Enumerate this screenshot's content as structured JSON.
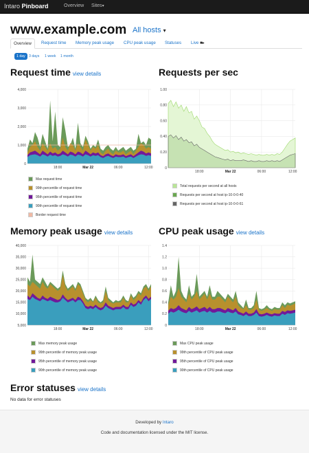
{
  "navbar": {
    "brand_light": "Intaro",
    "brand_bold": "Pinboard",
    "items": [
      {
        "label": "Overview"
      },
      {
        "label": "Sites"
      }
    ]
  },
  "page": {
    "title": "www.example.com",
    "hosts_label": "All hosts"
  },
  "tabs": [
    {
      "label": "Overview",
      "active": true
    },
    {
      "label": "Request time"
    },
    {
      "label": "Memory peak usage"
    },
    {
      "label": "CPU peak usage"
    },
    {
      "label": "Statuses"
    },
    {
      "label": "Live"
    }
  ],
  "periods": [
    {
      "label": "1 day",
      "active": true
    },
    {
      "label": "3 days"
    },
    {
      "label": "1 week"
    },
    {
      "label": "1 month"
    }
  ],
  "sections": {
    "request_time": {
      "title": "Request time",
      "link": "view details"
    },
    "requests_per_sec": {
      "title": "Requests per sec"
    },
    "memory": {
      "title": "Memory peak usage",
      "link": "view details"
    },
    "cpu": {
      "title": "CPU peak usage",
      "link": "view details"
    },
    "errors": {
      "title": "Error statuses",
      "link": "view details",
      "empty": "No data for error statuses"
    }
  },
  "colors": {
    "max": "#6b9a5a",
    "p99": "#b8902d",
    "p95": "#71199a",
    "p90": "#3a9ebd",
    "border": "#f0b9a4",
    "rps_total": "#b9e796",
    "rps_host_a": "#6aa84f",
    "rps_host_b": "#666666",
    "accent": "#1a73c9"
  },
  "icons": {
    "hosts_caret": "caret-down-icon",
    "live": "video-camera-icon"
  },
  "chart_data": [
    {
      "id": "request_time",
      "type": "area",
      "ylim": [
        0,
        4000
      ],
      "yticks": [
        "4,000",
        "3,000",
        "2,000",
        "1,000",
        "0"
      ],
      "xticks": [
        {
          "label": "18:00",
          "x": 18
        },
        {
          "label": "Mar 22",
          "x": 24,
          "bold": true
        },
        {
          "label": "06:00",
          "x": 30
        },
        {
          "label": "12:00",
          "x": 36
        }
      ],
      "x_range": [
        12,
        36.5
      ],
      "border_value": 1000,
      "series": [
        {
          "name": "Max request time",
          "key": "max",
          "values": [
            800,
            1300,
            1100,
            1700,
            1400,
            900,
            1600,
            1200,
            800,
            3400,
            1200,
            2800,
            1000,
            900,
            2500,
            1800,
            900,
            1000,
            1400,
            800,
            2200,
            1100,
            900,
            1500,
            1200,
            800,
            1000,
            900,
            1300,
            800,
            700,
            900,
            1000,
            800,
            700,
            900,
            700,
            800,
            900,
            700,
            800,
            900,
            700,
            800,
            1600,
            1100,
            1200,
            1000,
            1400,
            1300
          ]
        },
        {
          "name": "99th percentile of request time",
          "key": "p99",
          "values": [
            600,
            900,
            1000,
            1200,
            900,
            700,
            1100,
            900,
            700,
            1100,
            800,
            900,
            700,
            800,
            1400,
            900,
            700,
            1100,
            1000,
            700,
            1100,
            900,
            700,
            1300,
            1000,
            700,
            900,
            800,
            1000,
            600,
            500,
            700,
            800,
            600,
            500,
            700,
            600,
            600,
            700,
            500,
            600,
            700,
            500,
            700,
            900,
            1100,
            1000,
            800,
            900,
            800
          ]
        },
        {
          "name": "95th percentile of request time",
          "key": "p95",
          "values": [
            450,
            600,
            650,
            700,
            600,
            500,
            700,
            600,
            500,
            650,
            550,
            600,
            500,
            550,
            700,
            600,
            500,
            650,
            600,
            500,
            650,
            600,
            500,
            700,
            600,
            500,
            600,
            550,
            600,
            450,
            400,
            500,
            550,
            450,
            400,
            500,
            450,
            450,
            500,
            400,
            450,
            500,
            400,
            500,
            600,
            700,
            650,
            550,
            600,
            550
          ]
        },
        {
          "name": "90th percentile of request time",
          "key": "p90",
          "values": [
            350,
            450,
            480,
            500,
            450,
            380,
            500,
            450,
            380,
            480,
            420,
            450,
            380,
            420,
            500,
            450,
            380,
            480,
            450,
            380,
            480,
            450,
            380,
            500,
            450,
            380,
            450,
            420,
            450,
            350,
            300,
            380,
            420,
            350,
            300,
            380,
            350,
            350,
            380,
            300,
            350,
            380,
            300,
            380,
            450,
            500,
            480,
            420,
            450,
            420
          ]
        },
        {
          "name": "Border request time",
          "key": "border",
          "values": []
        }
      ]
    },
    {
      "id": "requests_per_sec",
      "type": "area",
      "ylim": [
        0,
        1.0
      ],
      "yticks": [
        "1.00",
        "0.80",
        "0.60",
        "0.40",
        "0.20",
        "0"
      ],
      "xticks": [
        {
          "label": "18:00",
          "x": 18
        },
        {
          "label": "Mar 22",
          "x": 24,
          "bold": true
        },
        {
          "label": "06:00",
          "x": 30
        },
        {
          "label": "12:00",
          "x": 36
        }
      ],
      "x_range": [
        12,
        36.5
      ],
      "series": [
        {
          "name": "Total requests per second at all hosts",
          "key": "rps_total",
          "values": [
            0.82,
            0.86,
            0.78,
            0.84,
            0.76,
            0.8,
            0.72,
            0.78,
            0.7,
            0.72,
            0.62,
            0.66,
            0.6,
            0.52,
            0.5,
            0.44,
            0.4,
            0.34,
            0.3,
            0.28,
            0.26,
            0.24,
            0.22,
            0.23,
            0.2,
            0.21,
            0.19,
            0.2,
            0.18,
            0.19,
            0.18,
            0.17,
            0.18,
            0.17,
            0.16,
            0.17,
            0.16,
            0.16,
            0.17,
            0.16,
            0.17,
            0.16,
            0.18,
            0.17,
            0.2,
            0.25,
            0.3,
            0.34,
            0.36,
            0.38
          ]
        },
        {
          "name": "Requests per second at host ip-10-0-0-40",
          "key": "rps_host_a",
          "values": [
            0.4,
            0.42,
            0.38,
            0.41,
            0.36,
            0.39,
            0.34,
            0.36,
            0.32,
            0.33,
            0.28,
            0.3,
            0.26,
            0.24,
            0.22,
            0.2,
            0.18,
            0.16,
            0.14,
            0.13,
            0.12,
            0.11,
            0.1,
            0.11,
            0.09,
            0.1,
            0.09,
            0.09,
            0.09,
            0.1,
            0.09,
            0.08,
            0.09,
            0.08,
            0.08,
            0.09,
            0.08,
            0.08,
            0.09,
            0.08,
            0.09,
            0.08,
            0.09,
            0.08,
            0.1,
            0.12,
            0.14,
            0.16,
            0.17,
            0.18
          ]
        },
        {
          "name": "Requests per second at host ip-10-0-0-61",
          "key": "rps_host_b",
          "values": [
            0.4,
            0.42,
            0.38,
            0.41,
            0.36,
            0.39,
            0.34,
            0.36,
            0.32,
            0.33,
            0.28,
            0.3,
            0.26,
            0.24,
            0.22,
            0.2,
            0.18,
            0.16,
            0.14,
            0.13,
            0.12,
            0.11,
            0.1,
            0.11,
            0.09,
            0.1,
            0.09,
            0.09,
            0.09,
            0.1,
            0.09,
            0.08,
            0.09,
            0.08,
            0.08,
            0.09,
            0.08,
            0.08,
            0.09,
            0.08,
            0.09,
            0.08,
            0.09,
            0.08,
            0.1,
            0.12,
            0.14,
            0.16,
            0.17,
            0.18
          ]
        }
      ]
    },
    {
      "id": "memory",
      "type": "area",
      "ylim": [
        5000,
        40000
      ],
      "yticks": [
        "40,000",
        "35,000",
        "30,000",
        "25,000",
        "20,000",
        "15,000",
        "10,000",
        "5,000"
      ],
      "xticks": [
        {
          "label": "18:00",
          "x": 18
        },
        {
          "label": "Mar 22",
          "x": 24,
          "bold": true
        },
        {
          "label": "06:00",
          "x": 30
        },
        {
          "label": "12:00",
          "x": 36
        }
      ],
      "x_range": [
        12,
        36.5
      ],
      "series": [
        {
          "name": "Max memory peak usage",
          "key": "max",
          "values": [
            26000,
            24000,
            36000,
            25000,
            24000,
            23000,
            26000,
            24000,
            22000,
            24000,
            23000,
            22000,
            21000,
            22000,
            29000,
            23000,
            21000,
            22000,
            23000,
            21000,
            24000,
            23000,
            20000,
            17000,
            16000,
            17000,
            15500,
            18000,
            16000,
            15000,
            16000,
            22000,
            17000,
            16000,
            15000,
            16000,
            15500,
            16000,
            18000,
            16000,
            15500,
            19000,
            17000,
            18000,
            20000,
            19000,
            22000,
            23000,
            21000,
            23000
          ]
        },
        {
          "name": "99th percentile of memory peak usage",
          "key": "p99",
          "values": [
            23000,
            22000,
            24000,
            23000,
            22000,
            21000,
            24000,
            22000,
            21000,
            23000,
            22000,
            21000,
            20000,
            21000,
            27000,
            22000,
            20000,
            21000,
            22000,
            20000,
            23000,
            22000,
            19000,
            16000,
            15000,
            16000,
            15000,
            17000,
            15000,
            14500,
            15000,
            20000,
            16000,
            15000,
            14500,
            15000,
            15000,
            15000,
            17000,
            15000,
            15000,
            18000,
            16000,
            17000,
            19000,
            18000,
            21000,
            22000,
            20000,
            22000
          ]
        },
        {
          "name": "95th percentile of memory peak usage",
          "key": "p95",
          "values": [
            18000,
            17000,
            19000,
            18000,
            17000,
            16500,
            18000,
            17000,
            16500,
            17500,
            17000,
            16500,
            16000,
            16500,
            18500,
            17000,
            16000,
            16500,
            17000,
            16000,
            17500,
            17000,
            15500,
            13500,
            13000,
            13500,
            13000,
            14000,
            13000,
            12500,
            13000,
            15000,
            13500,
            13000,
            12500,
            13000,
            13000,
            13000,
            14000,
            13000,
            13000,
            15000,
            14000,
            14500,
            16000,
            15000,
            17000,
            18000,
            16500,
            17500
          ]
        },
        {
          "name": "90th percentile of memory peak usage",
          "key": "p90",
          "values": [
            16500,
            16000,
            17500,
            16500,
            16000,
            15500,
            16500,
            16000,
            15500,
            16000,
            15500,
            15000,
            15000,
            15500,
            17000,
            16000,
            15000,
            15500,
            16000,
            15000,
            16000,
            16000,
            14500,
            12500,
            12000,
            12500,
            12000,
            13000,
            12000,
            11500,
            12000,
            13500,
            12500,
            12000,
            11500,
            12000,
            12000,
            12000,
            13000,
            12000,
            12000,
            14000,
            13000,
            13500,
            15000,
            14000,
            16000,
            17000,
            15500,
            16500
          ]
        }
      ]
    },
    {
      "id": "cpu",
      "type": "area",
      "ylim": [
        0,
        1.4
      ],
      "yticks": [
        "1.4",
        "1.2",
        "1.0",
        "0.8",
        "0.6",
        "0.4",
        "0.2",
        "0"
      ],
      "xticks": [
        {
          "label": "18:00",
          "x": 18
        },
        {
          "label": "Mar 22",
          "x": 24,
          "bold": true
        },
        {
          "label": "06:00",
          "x": 30
        },
        {
          "label": "12:00",
          "x": 36
        }
      ],
      "x_range": [
        12,
        36.5
      ],
      "series": [
        {
          "name": "Max CPU peak usage",
          "key": "max",
          "values": [
            0.4,
            0.7,
            0.5,
            0.6,
            1.2,
            0.6,
            0.5,
            0.45,
            0.7,
            0.5,
            0.55,
            0.9,
            0.5,
            0.55,
            0.6,
            0.5,
            0.7,
            0.5,
            0.5,
            0.6,
            0.55,
            0.5,
            0.45,
            0.55,
            0.5,
            0.45,
            0.6,
            0.4,
            0.35,
            0.3,
            0.45,
            0.3,
            0.3,
            0.35,
            0.6,
            0.3,
            0.28,
            0.3,
            0.35,
            0.3,
            0.28,
            0.32,
            0.3,
            0.3,
            0.4,
            0.35,
            0.4,
            0.38,
            0.4,
            0.42
          ]
        },
        {
          "name": "99th percentile of CPU peak usage",
          "key": "p99",
          "values": [
            0.35,
            0.5,
            0.45,
            0.5,
            0.65,
            0.5,
            0.45,
            0.4,
            0.55,
            0.45,
            0.5,
            0.6,
            0.45,
            0.5,
            0.55,
            0.45,
            0.55,
            0.45,
            0.45,
            0.5,
            0.5,
            0.45,
            0.4,
            0.5,
            0.45,
            0.4,
            0.5,
            0.35,
            0.3,
            0.28,
            0.35,
            0.27,
            0.27,
            0.3,
            0.45,
            0.27,
            0.25,
            0.27,
            0.3,
            0.27,
            0.25,
            0.28,
            0.27,
            0.27,
            0.35,
            0.3,
            0.36,
            0.34,
            0.36,
            0.38
          ]
        },
        {
          "name": "95th percentile of CPU peak usage",
          "key": "p95",
          "values": [
            0.25,
            0.3,
            0.28,
            0.3,
            0.35,
            0.3,
            0.28,
            0.26,
            0.32,
            0.28,
            0.3,
            0.33,
            0.28,
            0.3,
            0.32,
            0.28,
            0.32,
            0.28,
            0.28,
            0.3,
            0.3,
            0.28,
            0.26,
            0.3,
            0.28,
            0.26,
            0.3,
            0.24,
            0.22,
            0.2,
            0.24,
            0.2,
            0.2,
            0.22,
            0.28,
            0.2,
            0.19,
            0.2,
            0.22,
            0.2,
            0.19,
            0.21,
            0.2,
            0.2,
            0.25,
            0.23,
            0.26,
            0.25,
            0.26,
            0.27
          ]
        },
        {
          "name": "90th percentile of CPU peak usage",
          "key": "p90",
          "values": [
            0.2,
            0.24,
            0.22,
            0.24,
            0.27,
            0.24,
            0.22,
            0.21,
            0.25,
            0.22,
            0.24,
            0.26,
            0.22,
            0.24,
            0.25,
            0.22,
            0.25,
            0.22,
            0.22,
            0.24,
            0.24,
            0.22,
            0.21,
            0.24,
            0.22,
            0.21,
            0.24,
            0.19,
            0.18,
            0.16,
            0.19,
            0.16,
            0.16,
            0.18,
            0.22,
            0.16,
            0.15,
            0.16,
            0.18,
            0.16,
            0.15,
            0.17,
            0.16,
            0.16,
            0.2,
            0.18,
            0.21,
            0.2,
            0.21,
            0.22
          ]
        }
      ]
    }
  ],
  "footer": {
    "developed_by": "Developed by",
    "developer_link": "Intaro",
    "license": "Code and documentation licensed under the MIT license."
  }
}
